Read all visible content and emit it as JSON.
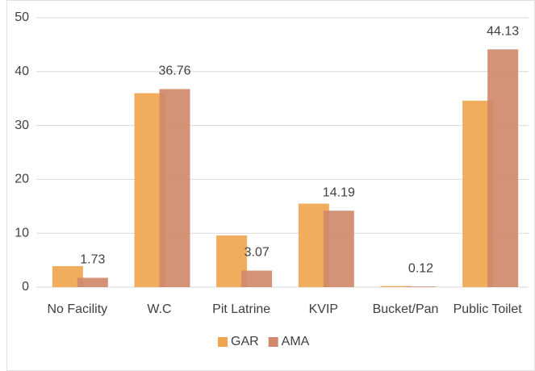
{
  "chart_data": {
    "type": "bar",
    "categories": [
      "No Facility",
      "W.C",
      "Pit Latrine",
      "KVIP",
      "Bucket/Pan",
      "Public Toilet"
    ],
    "series": [
      {
        "name": "GAR",
        "color": "#f0a650",
        "values": [
          3.9,
          36,
          9.6,
          15.5,
          0.2,
          34.6
        ]
      },
      {
        "name": "AMA",
        "color": "#d0896a",
        "values": [
          1.73,
          36.76,
          3.07,
          14.19,
          0.12,
          44.13
        ]
      }
    ],
    "labeled_series": 1,
    "ylim": [
      0,
      50
    ],
    "yticks": [
      0,
      10,
      20,
      30,
      40,
      50
    ],
    "grid": true,
    "legend": "bottom"
  }
}
